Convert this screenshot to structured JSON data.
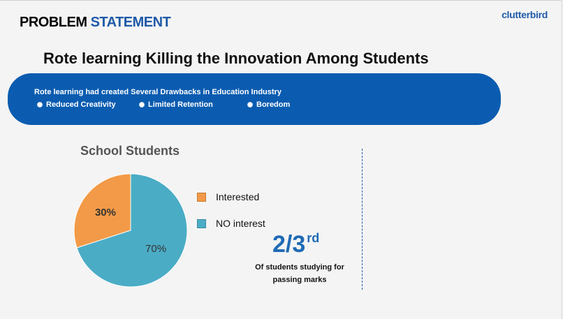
{
  "header": {
    "title_part1": "PROBLEM",
    "title_part2": "STATEMENT",
    "logo_text": "clutterbird"
  },
  "subtitle": "Rote learning Killing the Innovation Among Students",
  "banner": {
    "text": "Rote learning had created Several Drawbacks in Education Industry",
    "bullets": [
      "Reduced Creativity",
      "Limited Retention",
      "Boredom"
    ]
  },
  "stat": {
    "numerator": "2/3",
    "suffix": "rd",
    "caption_line1": "Of  students studying for",
    "caption_line2": "passing marks"
  },
  "colors": {
    "accent_blue": "#1f5aa8",
    "banner_blue": "#0b5cb0",
    "interested": "#f29a47",
    "no_interest": "#4bacc6"
  },
  "chart_data": {
    "type": "pie",
    "title": "School Students",
    "categories": [
      "Interested",
      "NO interest"
    ],
    "values": [
      30,
      70
    ],
    "labels": [
      "30%",
      "70%"
    ],
    "colors": [
      "#f29a47",
      "#4bacc6"
    ],
    "legend_position": "right"
  }
}
